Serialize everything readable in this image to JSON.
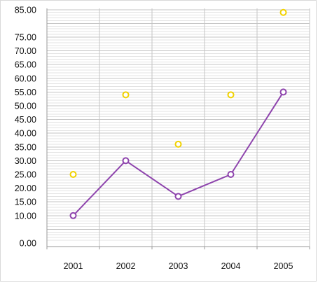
{
  "chart_data": {
    "type": "line",
    "title": "",
    "xlabel": "",
    "ylabel": "",
    "categories": [
      "2001",
      "2002",
      "2003",
      "2004",
      "2005"
    ],
    "y_tick_labels": [
      "0.00",
      "10.00",
      "15.00",
      "20.00",
      "25.00",
      "30.00",
      "35.00",
      "40.00",
      "45.00",
      "50.00",
      "55.00",
      "60.00",
      "65.00",
      "70.00",
      "75.00",
      "85.00"
    ],
    "ylim": [
      0,
      85
    ],
    "grid": true,
    "legend": "none",
    "series": [
      {
        "style": "line-with-markers",
        "color": "#8e44ad",
        "values": [
          10,
          30,
          17,
          25,
          55
        ]
      },
      {
        "style": "markers-only",
        "color": "#f1d200",
        "values": [
          25,
          54,
          36,
          54,
          84
        ]
      }
    ]
  }
}
